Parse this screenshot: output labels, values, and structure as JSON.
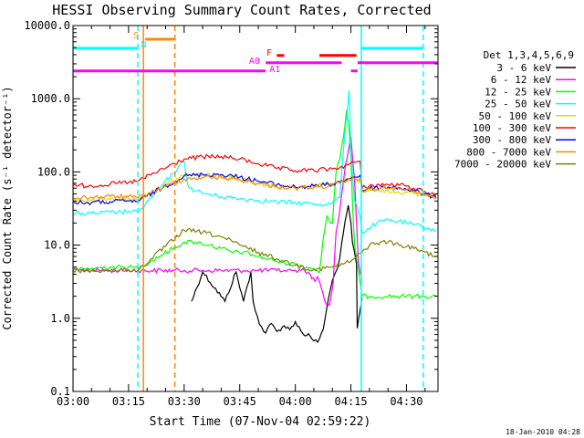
{
  "chart_data": {
    "type": "line",
    "title": "HESSI Observing Summary Count Rates, Corrected",
    "xlabel": "Start Time (07-Nov-04 02:59:22)",
    "ylabel": "Corrected Count Rate (s⁻¹ detector⁻¹)",
    "y_scale": "log",
    "ylim": [
      0.1,
      10000
    ],
    "xlim_minutes": [
      0,
      98.5
    ],
    "x_ticks": [
      {
        "minute": 0,
        "label": "03:00"
      },
      {
        "minute": 15,
        "label": "03:15"
      },
      {
        "minute": 30,
        "label": "03:30"
      },
      {
        "minute": 45,
        "label": "03:45"
      },
      {
        "minute": 60,
        "label": "04:00"
      },
      {
        "minute": 75,
        "label": "04:15"
      },
      {
        "minute": 90,
        "label": "04:30"
      }
    ],
    "y_ticks": [
      {
        "value": 0.1,
        "label": "0.1"
      },
      {
        "value": 1,
        "label": "1.0"
      },
      {
        "value": 10,
        "label": "10.0"
      },
      {
        "value": 100,
        "label": "100.0"
      },
      {
        "value": 1000,
        "label": "1000.0"
      },
      {
        "value": 10000,
        "label": "10000.0"
      }
    ],
    "legend_header": "Det 1,3,4,5,6,9",
    "legend_position": "right",
    "series": [
      {
        "name": "3 - 6 keV",
        "color": "#000000",
        "x": [
          32,
          35,
          41,
          44,
          46,
          48,
          48.6,
          50.3,
          52,
          53.5,
          55,
          57,
          58.5,
          60,
          62,
          64,
          65,
          66,
          67.5,
          68.5,
          70,
          71.5,
          73,
          74.3,
          75,
          75.4,
          76.5,
          76.7,
          77.1,
          78
        ],
        "y": [
          1.7,
          4.3,
          1.7,
          4.3,
          1.7,
          4.3,
          1.7,
          0.83,
          0.63,
          0.85,
          0.66,
          0.79,
          0.7,
          0.9,
          0.62,
          0.57,
          0.49,
          0.47,
          0.7,
          1.4,
          3.3,
          5.0,
          15,
          35,
          20,
          11,
          5.5,
          0.73,
          1.0,
          1.9
        ]
      },
      {
        "name": "6 - 12 keV",
        "color": "#ff00ff",
        "x": [
          0,
          5,
          10,
          15,
          17.5,
          30,
          35,
          40,
          46,
          50,
          55,
          57,
          59,
          60,
          61.5,
          62.5,
          64,
          65.3,
          66,
          67,
          68.4,
          69.2,
          70.2,
          71,
          72,
          73.5,
          75,
          76,
          77,
          77.6
        ],
        "y": [
          4.5,
          4.5,
          4.5,
          4.5,
          4.5,
          4.5,
          4.5,
          4.5,
          4.5,
          4.5,
          4.5,
          4.5,
          4.5,
          4.5,
          4.5,
          4.5,
          4.0,
          3.2,
          3.7,
          2.6,
          1.55,
          1.5,
          3.0,
          15,
          30,
          120,
          300,
          75,
          6.0,
          3.9
        ]
      },
      {
        "name": "12 - 25 keV",
        "color": "#00ff00",
        "x": [
          0,
          5,
          10,
          15,
          17.5,
          30,
          33,
          37,
          40,
          43,
          46,
          50,
          54,
          57,
          60,
          63,
          65,
          66.5,
          67.5,
          68.5,
          69.5,
          70,
          71,
          72,
          73,
          73.8,
          74.5,
          75,
          75.5,
          76,
          77,
          78,
          80,
          85,
          90,
          95,
          98
        ],
        "y": [
          4.5,
          4.8,
          5.0,
          5.0,
          4.8,
          11,
          11,
          10,
          9.0,
          8.0,
          8.0,
          7.0,
          6.2,
          5.8,
          5.5,
          5.0,
          4.8,
          4.2,
          12,
          25,
          20,
          20,
          100,
          150,
          300,
          700,
          400,
          150,
          30,
          10,
          4.5,
          2.0,
          2.0,
          2.0,
          2.0,
          2.0,
          2.0
        ]
      },
      {
        "name": "25 - 50 keV",
        "color": "#00ffff",
        "x": [
          0,
          5,
          10,
          12,
          15,
          17.5,
          30,
          31,
          33,
          36,
          40,
          45,
          50,
          55,
          60,
          64,
          68,
          70,
          72,
          73,
          74.5,
          75,
          75.5,
          76,
          76.5,
          77.5,
          78,
          82,
          85,
          88,
          90,
          92,
          94,
          96,
          98
        ],
        "y": [
          27,
          27,
          28,
          28,
          29,
          28,
          140,
          65,
          55,
          50,
          46,
          43,
          41,
          39,
          38,
          37,
          36,
          38,
          45,
          200,
          1300,
          200,
          80,
          40,
          36,
          24,
          15,
          20,
          22,
          21,
          20,
          19,
          18,
          17,
          16
        ]
      },
      {
        "name": "50 - 100 keV",
        "color": "#dddd00",
        "x": [
          0,
          5,
          10,
          15,
          17.5,
          30,
          33,
          35,
          40,
          45,
          50,
          55,
          60,
          65,
          70,
          72,
          74,
          76,
          77.5,
          78,
          80,
          82,
          85,
          88,
          90,
          92,
          95,
          98
        ],
        "y": [
          40,
          41,
          42,
          43,
          42,
          90,
          92,
          92,
          88,
          80,
          70,
          63,
          62,
          64,
          68,
          73,
          78,
          82,
          75,
          55,
          55,
          56,
          55,
          53,
          52,
          50,
          48,
          45
        ]
      },
      {
        "name": "100 - 300 keV",
        "color": "#ff0000",
        "x": [
          0,
          5,
          10,
          15,
          17.5,
          30,
          35,
          40,
          45,
          50,
          55,
          60,
          65,
          70,
          72,
          74,
          76,
          77.5,
          78,
          80,
          85,
          88,
          90,
          92,
          95,
          98
        ],
        "y": [
          65,
          65,
          68,
          72,
          75,
          150,
          160,
          162,
          150,
          130,
          112,
          104,
          105,
          110,
          115,
          125,
          135,
          140,
          60,
          65,
          67,
          66,
          64,
          60,
          54,
          48
        ]
      },
      {
        "name": "300 - 800 keV",
        "color": "#0000ff",
        "x": [
          0,
          5,
          10,
          15,
          17.5,
          30,
          35,
          40,
          45,
          50,
          55,
          60,
          65,
          70,
          72,
          74,
          76,
          77.5,
          78,
          80,
          85,
          88,
          90,
          92,
          95,
          98
        ],
        "y": [
          38,
          38,
          39,
          40,
          40,
          88,
          92,
          92,
          85,
          75,
          67,
          62,
          64,
          68,
          73,
          80,
          85,
          90,
          55,
          60,
          62,
          61,
          58,
          55,
          50,
          44
        ]
      },
      {
        "name": "800 - 7000 keV",
        "color": "#ff8800",
        "x": [
          0,
          5,
          10,
          15,
          17.5,
          30,
          35,
          40,
          45,
          50,
          55,
          60,
          65,
          70,
          72,
          74,
          76,
          77.5,
          78,
          80,
          85,
          88,
          90,
          92,
          95,
          98
        ],
        "y": [
          45,
          45,
          46,
          46,
          44,
          80,
          84,
          84,
          78,
          70,
          63,
          60,
          62,
          65,
          70,
          76,
          80,
          82,
          55,
          58,
          60,
          59,
          57,
          54,
          49,
          43
        ]
      },
      {
        "name": "7000 - 20000 keV",
        "color": "#808000",
        "x": [
          0,
          5,
          10,
          15,
          17.5,
          30,
          35,
          40,
          45,
          50,
          55,
          60,
          65,
          70,
          75,
          78,
          80,
          83,
          85,
          87,
          88,
          90,
          92,
          95,
          98
        ],
        "y": [
          4.5,
          4.5,
          4.5,
          4.6,
          4.5,
          16,
          15,
          13,
          10,
          8.0,
          6.5,
          5.3,
          4.6,
          5.0,
          6.0,
          8.0,
          10,
          11,
          11,
          10.5,
          10,
          9.5,
          9.0,
          8.0,
          7.0
        ]
      }
    ],
    "vertical_markers": [
      {
        "minute": 0,
        "color": "#00ffff",
        "style": "solid"
      },
      {
        "minute": 17.5,
        "color": "#00ffff",
        "style": "dashed"
      },
      {
        "minute": 19,
        "color": "#ff8800",
        "style": "solid"
      },
      {
        "minute": 27.5,
        "color": "#ff8800",
        "style": "dashed"
      },
      {
        "minute": 77.8,
        "color": "#00ffff",
        "style": "solid"
      },
      {
        "minute": 94.5,
        "color": "#00ffff",
        "style": "dashed"
      }
    ],
    "flag_bars": [
      {
        "x0": 0,
        "x1": 17.5,
        "y": 4900,
        "color": "#00ffff"
      },
      {
        "x0": 77.8,
        "x1": 94.5,
        "y": 4900,
        "color": "#00ffff"
      },
      {
        "x0": 19.5,
        "x1": 27.5,
        "y": 6500,
        "color": "#ff8800"
      },
      {
        "x0": 0,
        "x1": 52,
        "y": 2400,
        "color": "#ff00ff"
      },
      {
        "x0": 52,
        "x1": 72.5,
        "y": 3100,
        "color": "#ff00ff"
      },
      {
        "x0": 75,
        "x1": 76.8,
        "y": 2400,
        "color": "#ff00ff"
      },
      {
        "x0": 76.8,
        "x1": 98.5,
        "y": 3100,
        "color": "#ff00ff"
      },
      {
        "x0": 55,
        "x1": 57,
        "y": 3900,
        "color": "#ff0000"
      },
      {
        "x0": 66.5,
        "x1": 76.5,
        "y": 3900,
        "color": "#ff0000"
      }
    ],
    "flag_labels": [
      {
        "text": "S",
        "x": 16.3,
        "y": 6700,
        "color": "#ff8800"
      },
      {
        "text": "N",
        "x": 18.3,
        "y": 5000,
        "color": "#00ffff"
      },
      {
        "text": "F",
        "x": 52.2,
        "y": 3900,
        "color": "#ff0000"
      },
      {
        "text": "A0",
        "x": 47.5,
        "y": 3000,
        "color": "#ff00ff"
      },
      {
        "text": "A1",
        "x": 53,
        "y": 2300,
        "color": "#ff00ff"
      }
    ],
    "timestamp": "18-Jan-2010 04:28"
  }
}
